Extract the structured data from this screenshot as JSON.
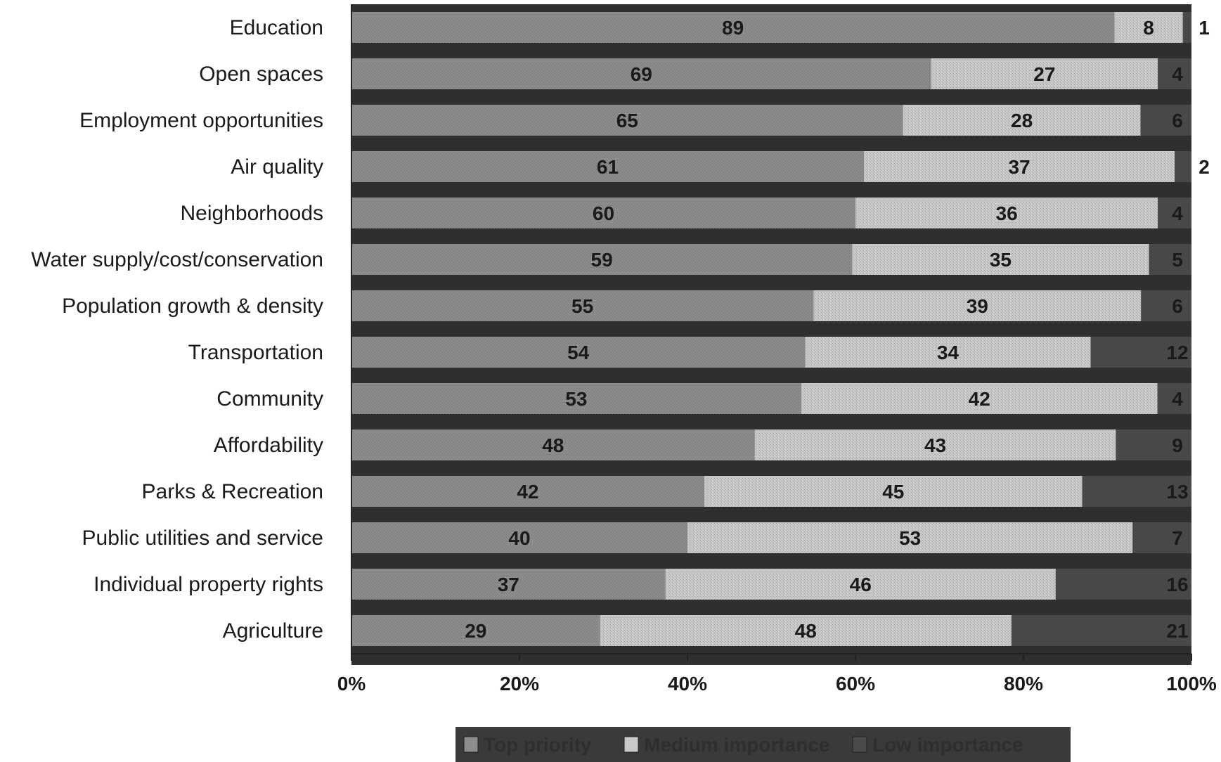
{
  "chart_data": {
    "type": "bar",
    "orientation": "horizontal",
    "stacked": "percent",
    "title": "",
    "xlabel": "",
    "ylabel": "",
    "xlim": [
      0,
      100
    ],
    "x_ticks": [
      "0%",
      "20%",
      "40%",
      "60%",
      "80%",
      "100%"
    ],
    "legend_position": "bottom",
    "grid": false,
    "categories": [
      "Education",
      "Open spaces",
      "Employment opportunities",
      "Air quality",
      "Neighborhoods",
      "Water supply/cost/conservation",
      "Population growth & density",
      "Transportation",
      "Community",
      "Affordability",
      "Parks & Recreation",
      "Public utilities and service",
      "Individual property rights",
      "Agriculture"
    ],
    "series": [
      {
        "name": "Top priority",
        "color": "#8c8c8c",
        "values": [
          89,
          69,
          65,
          61,
          60,
          59,
          55,
          54,
          53,
          48,
          42,
          40,
          37,
          29
        ]
      },
      {
        "name": "Medium importance",
        "color": "#c8c8c8",
        "values": [
          8,
          27,
          28,
          37,
          36,
          35,
          39,
          34,
          42,
          43,
          45,
          53,
          46,
          48
        ]
      },
      {
        "name": "Low importance",
        "color": "#4a4a4a",
        "values": [
          1,
          4,
          6,
          2,
          4,
          5,
          6,
          12,
          4,
          9,
          13,
          7,
          16,
          21
        ]
      }
    ]
  }
}
